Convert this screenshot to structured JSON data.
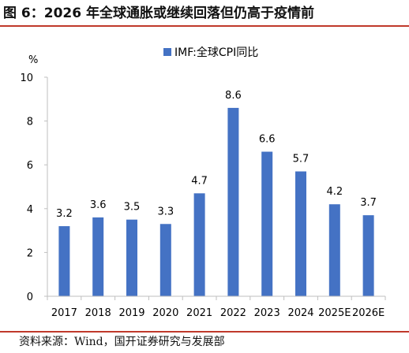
{
  "figure": {
    "title": "图 6：2026 年全球通胀或继续回落但仍高于疫情前",
    "source": "资料来源：Wind，国开证券研究与发展部"
  },
  "chart_data": {
    "type": "bar",
    "categories": [
      "2017",
      "2018",
      "2019",
      "2020",
      "2021",
      "2022",
      "2023",
      "2024",
      "2025E",
      "2026E"
    ],
    "series": [
      {
        "name": "IMF:全球CPI同比",
        "values": [
          3.2,
          3.6,
          3.5,
          3.3,
          4.7,
          8.6,
          6.6,
          5.7,
          4.2,
          3.7
        ]
      }
    ],
    "data_labels": [
      "3.2",
      "3.6",
      "3.5",
      "3.3",
      "4.7",
      "8.6",
      "6.6",
      "5.7",
      "4.2",
      "3.7"
    ],
    "ylabel": "%",
    "ylim": [
      0,
      10
    ],
    "yticks": [
      "0",
      "2",
      "4",
      "6",
      "8",
      "10"
    ],
    "legend": "top-center",
    "grid": false,
    "colors": {
      "bar": "#4472c4",
      "axis": "#bfbfbf",
      "rule": "#c0392b"
    }
  }
}
